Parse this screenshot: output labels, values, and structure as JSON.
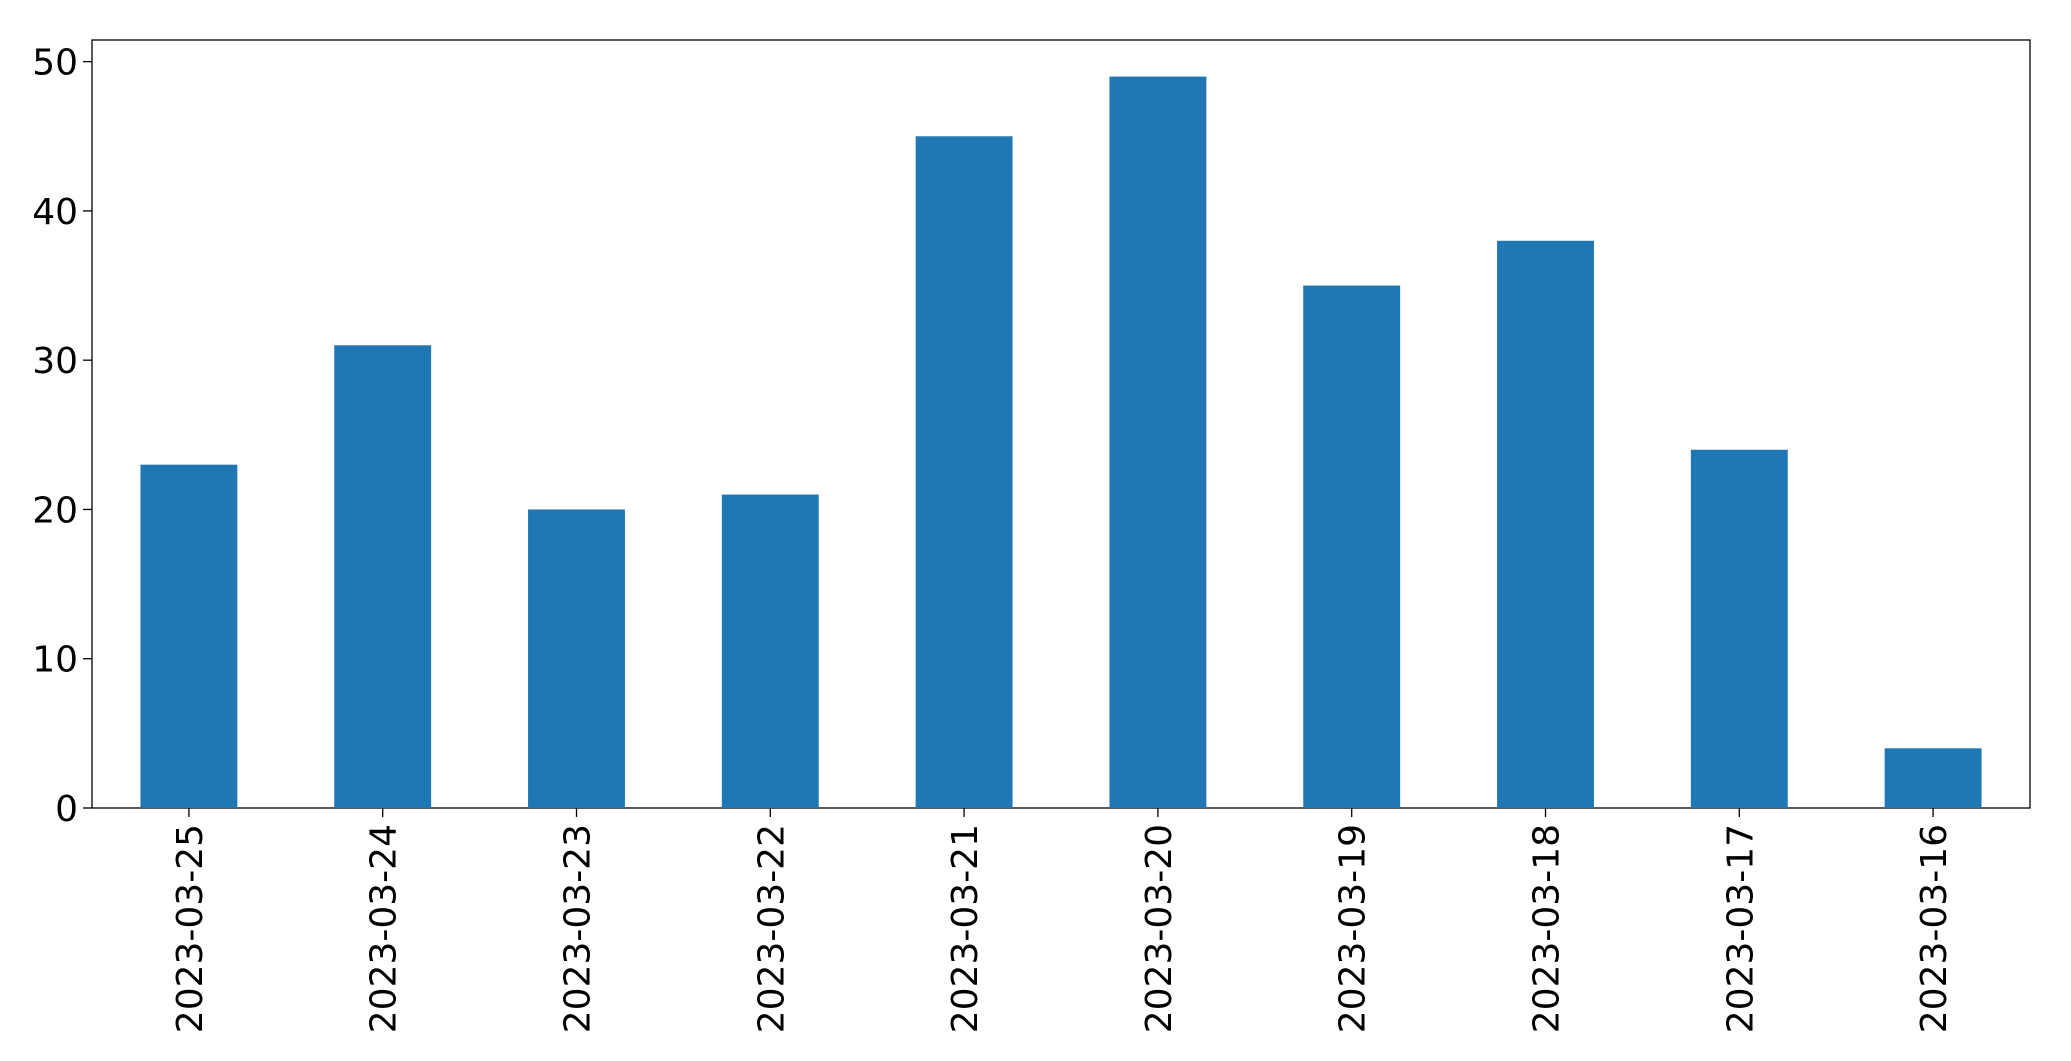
{
  "chart_data": {
    "type": "bar",
    "categories": [
      "2023-03-25",
      "2023-03-24",
      "2023-03-23",
      "2023-03-22",
      "2023-03-21",
      "2023-03-20",
      "2023-03-19",
      "2023-03-18",
      "2023-03-17",
      "2023-03-16"
    ],
    "values": [
      23,
      31,
      20,
      21,
      45,
      49,
      35,
      38,
      24,
      4
    ],
    "color": "#1f77b4",
    "ylim": [
      0,
      51.45
    ],
    "yticks": [
      0,
      10,
      20,
      30,
      40,
      50
    ],
    "grid": false
  }
}
